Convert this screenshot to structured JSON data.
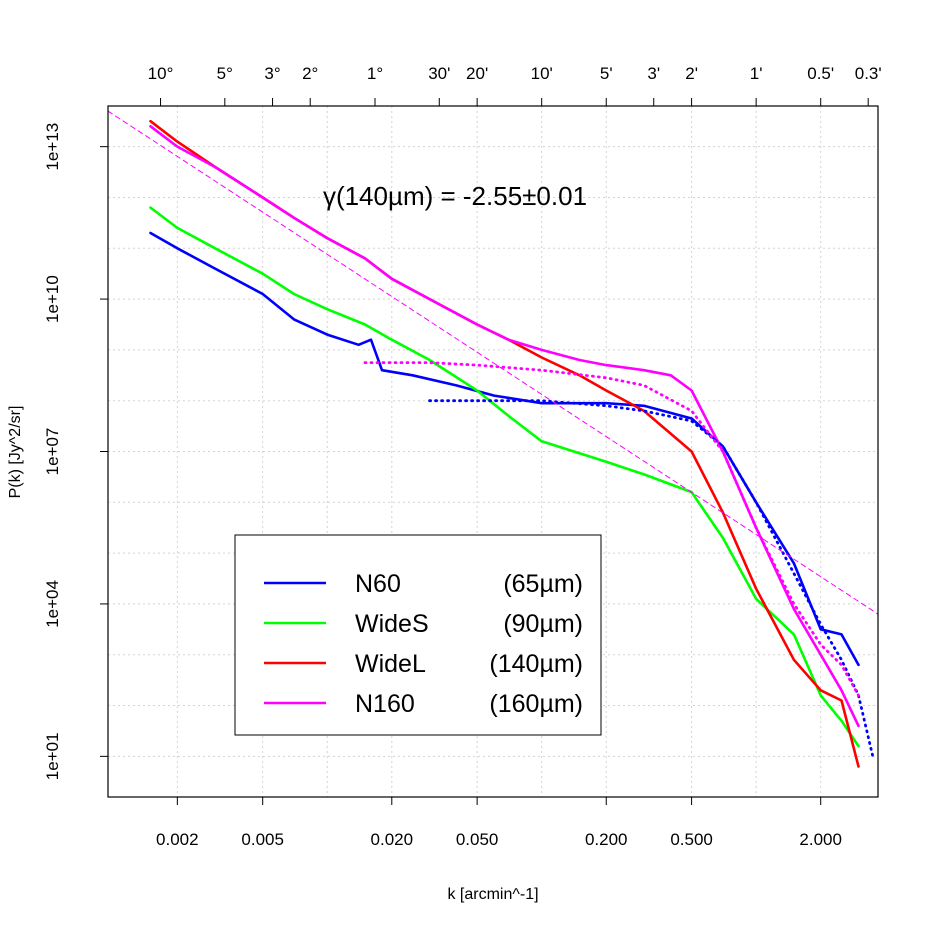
{
  "chart_data": {
    "type": "line",
    "title": "",
    "xlabel": "k [arcmin^-1]",
    "ylabel": "P(k) [Jy^2/sr]",
    "xscale": "log",
    "yscale": "log",
    "xlim": [
      0.00095,
      3.7
    ],
    "ylim_log10": [
      0.2,
      13.8
    ],
    "x_ticks": [
      {
        "value": 0.002,
        "label": "0.002"
      },
      {
        "value": 0.005,
        "label": "0.005"
      },
      {
        "value": 0.02,
        "label": "0.020"
      },
      {
        "value": 0.05,
        "label": "0.050"
      },
      {
        "value": 0.2,
        "label": "0.200"
      },
      {
        "value": 0.5,
        "label": "0.500"
      },
      {
        "value": 2.0,
        "label": "2.000"
      }
    ],
    "x_minor_grid": [
      0.01,
      0.1,
      1.0
    ],
    "y_ticks": [
      {
        "value_log10": 1,
        "label": "1e+01"
      },
      {
        "value_log10": 4,
        "label": "1e+04"
      },
      {
        "value_log10": 7,
        "label": "1e+07"
      },
      {
        "value_log10": 10,
        "label": "1e+10"
      },
      {
        "value_log10": 13,
        "label": "1e+13"
      }
    ],
    "y_grid_log10": [
      1,
      2,
      3,
      4,
      5,
      6,
      7,
      8,
      9,
      10,
      11,
      12,
      13
    ],
    "top_axis": [
      {
        "k": 0.00167,
        "label": "10°"
      },
      {
        "k": 0.00333,
        "label": "5°"
      },
      {
        "k": 0.00556,
        "label": "3°"
      },
      {
        "k": 0.00833,
        "label": "2°"
      },
      {
        "k": 0.0167,
        "label": "1°"
      },
      {
        "k": 0.0333,
        "label": "30'"
      },
      {
        "k": 0.05,
        "label": "20'"
      },
      {
        "k": 0.1,
        "label": "10'"
      },
      {
        "k": 0.2,
        "label": "5'"
      },
      {
        "k": 0.333,
        "label": "3'"
      },
      {
        "k": 0.5,
        "label": "2'"
      },
      {
        "k": 1.0,
        "label": "1'"
      },
      {
        "k": 2.0,
        "label": "0.5'"
      },
      {
        "k": 3.33,
        "label": "0.3'"
      }
    ],
    "annotation": "γ(140µm) = -2.55±0.01",
    "legend": {
      "placement": "bottom-left",
      "entries": [
        {
          "name": "N60",
          "wavelength": "(65µm)",
          "color": "#0000ff"
        },
        {
          "name": "WideS",
          "wavelength": "(90µm)",
          "color": "#00ff00"
        },
        {
          "name": "WideL",
          "wavelength": "(140µm)",
          "color": "#ff0000"
        },
        {
          "name": "N160",
          "wavelength": "(160µm)",
          "color": "#ff00ff"
        }
      ]
    },
    "series": [
      {
        "name": "N60 (65µm)",
        "color": "#0000ff",
        "style": "solid",
        "x": [
          0.0015,
          0.002,
          0.003,
          0.005,
          0.007,
          0.01,
          0.014,
          0.016,
          0.018,
          0.025,
          0.04,
          0.06,
          0.1,
          0.15,
          0.2,
          0.3,
          0.5,
          0.7,
          1.0,
          1.5,
          2.0,
          2.5,
          3.0
        ],
        "y_log10": [
          11.3,
          11.0,
          10.6,
          10.1,
          9.6,
          9.3,
          9.1,
          9.2,
          8.6,
          8.5,
          8.3,
          8.1,
          7.95,
          7.95,
          7.95,
          7.9,
          7.65,
          7.1,
          6.0,
          4.8,
          3.5,
          3.4,
          2.8
        ]
      },
      {
        "name": "WideS (90µm)",
        "color": "#00ff00",
        "style": "solid",
        "x": [
          0.0015,
          0.002,
          0.003,
          0.005,
          0.007,
          0.01,
          0.015,
          0.02,
          0.03,
          0.05,
          0.07,
          0.1,
          0.2,
          0.3,
          0.5,
          0.7,
          1.0,
          1.5,
          2.0,
          2.5,
          3.0
        ],
        "y_log10": [
          11.8,
          11.4,
          11.0,
          10.5,
          10.1,
          9.8,
          9.5,
          9.2,
          8.8,
          8.2,
          7.7,
          7.2,
          6.8,
          6.55,
          6.2,
          5.3,
          4.1,
          3.4,
          2.2,
          1.7,
          1.2
        ]
      },
      {
        "name": "WideL (140µm)",
        "color": "#ff0000",
        "style": "solid",
        "x": [
          0.0015,
          0.002,
          0.003,
          0.005,
          0.007,
          0.01,
          0.015,
          0.02,
          0.03,
          0.05,
          0.07,
          0.1,
          0.15,
          0.2,
          0.3,
          0.5,
          0.7,
          1.0,
          1.5,
          2.0,
          2.5,
          3.0
        ],
        "y_log10": [
          13.5,
          13.1,
          12.6,
          12.0,
          11.6,
          11.2,
          10.8,
          10.4,
          10.0,
          9.5,
          9.2,
          8.85,
          8.5,
          8.2,
          7.8,
          7.0,
          5.8,
          4.3,
          2.9,
          2.3,
          2.1,
          0.8
        ]
      },
      {
        "name": "N160 (160µm)",
        "color": "#ff00ff",
        "style": "solid",
        "x": [
          0.0015,
          0.002,
          0.003,
          0.005,
          0.007,
          0.01,
          0.015,
          0.02,
          0.03,
          0.05,
          0.07,
          0.1,
          0.15,
          0.2,
          0.3,
          0.4,
          0.5,
          0.7,
          1.0,
          1.5,
          2.0,
          2.5,
          3.0
        ],
        "y_log10": [
          13.4,
          13.0,
          12.6,
          12.0,
          11.6,
          11.2,
          10.8,
          10.4,
          10.0,
          9.5,
          9.2,
          9.0,
          8.8,
          8.7,
          8.6,
          8.5,
          8.2,
          7.0,
          5.5,
          3.9,
          3.0,
          2.3,
          1.6
        ]
      },
      {
        "name": "N60 model",
        "color": "#0000ff",
        "style": "dotted",
        "x": [
          0.03,
          0.05,
          0.1,
          0.2,
          0.3,
          0.5,
          0.7,
          1.0,
          1.5,
          2.0,
          2.5,
          3.0,
          3.5
        ],
        "y_log10": [
          8.0,
          8.0,
          8.0,
          7.9,
          7.8,
          7.6,
          7.1,
          6.0,
          4.6,
          3.6,
          2.9,
          2.2,
          1.0
        ]
      },
      {
        "name": "N160 model",
        "color": "#ff00ff",
        "style": "dotted",
        "x": [
          0.015,
          0.03,
          0.05,
          0.1,
          0.2,
          0.3,
          0.5,
          0.7,
          1.0,
          1.5,
          2.0,
          2.5,
          3.0
        ],
        "y_log10": [
          8.75,
          8.75,
          8.7,
          8.6,
          8.45,
          8.3,
          7.8,
          7.0,
          5.5,
          4.0,
          3.2,
          2.8,
          2.2
        ]
      },
      {
        "name": "Fit γ(140µm)",
        "color": "#ff00ff",
        "style": "dashed",
        "x": [
          0.00095,
          3.7
        ],
        "y_log10": [
          13.7,
          3.8
        ]
      }
    ]
  }
}
